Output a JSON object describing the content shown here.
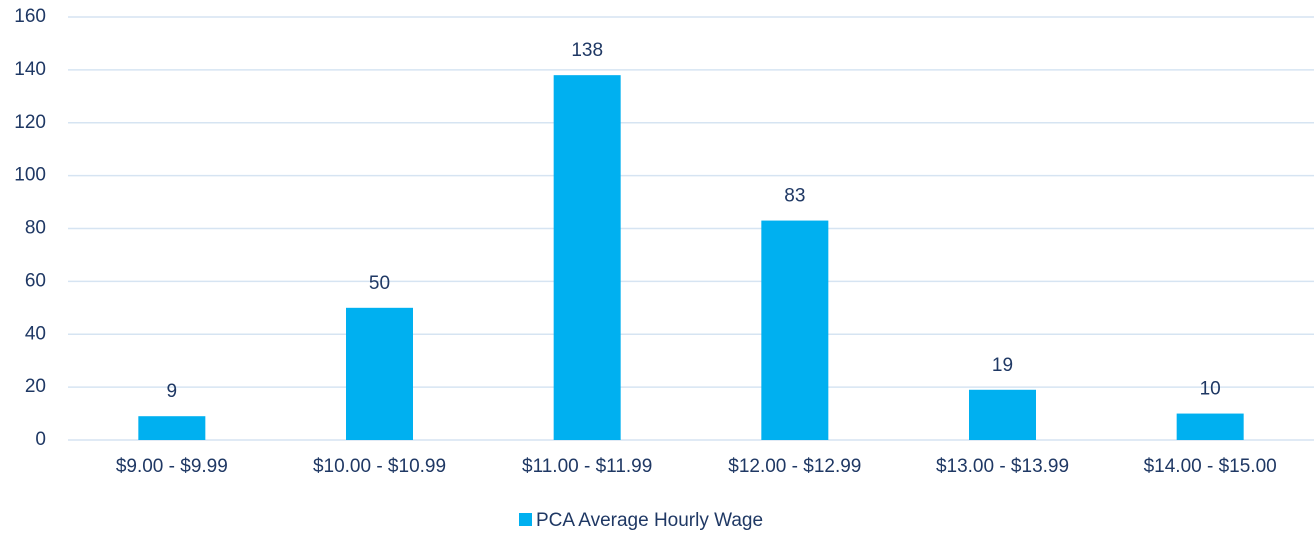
{
  "chart_data": {
    "type": "bar",
    "categories": [
      "$9.00 - $9.99",
      "$10.00 - $10.99",
      "$11.00 - $11.99",
      "$12.00 - $12.99",
      "$13.00 - $13.99",
      "$14.00 - $15.00"
    ],
    "series": [
      {
        "name": "PCA Average Hourly Wage",
        "color": "#00b0f0",
        "values": [
          9,
          50,
          138,
          83,
          19,
          10
        ]
      }
    ],
    "ylim": [
      0,
      160
    ],
    "yticks": [
      0,
      20,
      40,
      60,
      80,
      100,
      120,
      140,
      160
    ],
    "grid": true,
    "legend": "bottom"
  }
}
